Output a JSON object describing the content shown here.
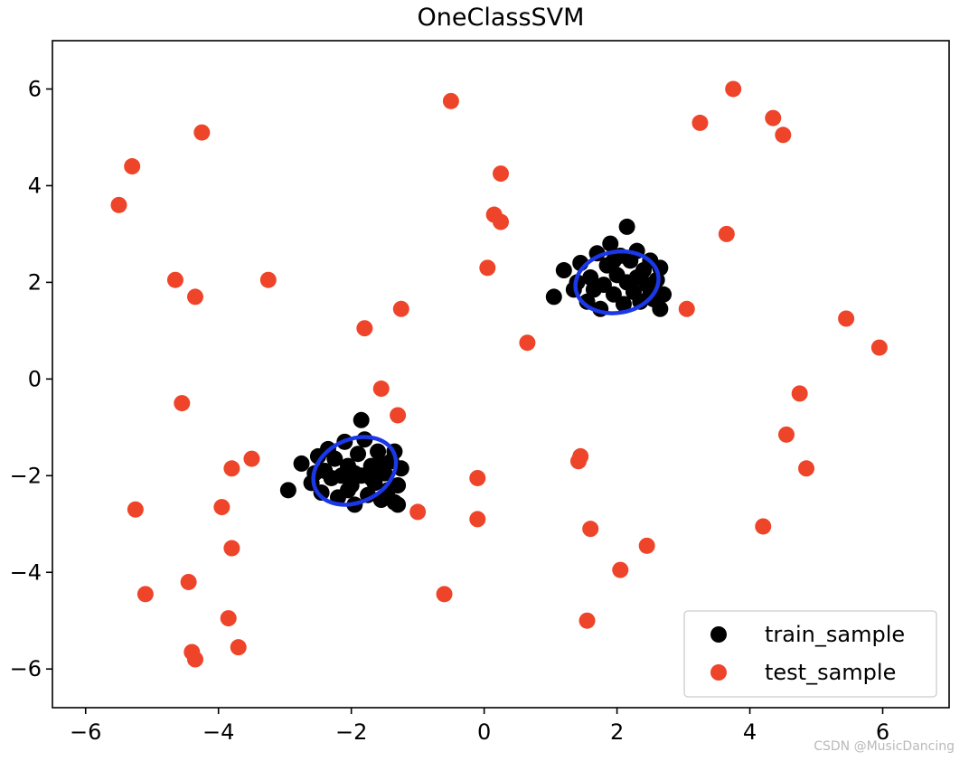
{
  "chart_data": {
    "type": "scatter",
    "title": "OneClassSVM",
    "xlabel": "",
    "ylabel": "",
    "xlim": [
      -6.5,
      7
    ],
    "ylim": [
      -6.8,
      7
    ],
    "xticks": [
      -6,
      -4,
      -2,
      0,
      2,
      4,
      6
    ],
    "xtick_labels": [
      "−6",
      "−4",
      "−2",
      "0",
      "2",
      "4",
      "6"
    ],
    "yticks": [
      -6,
      -4,
      -2,
      0,
      2,
      4,
      6
    ],
    "ytick_labels": [
      "−6",
      "−4",
      "−2",
      "0",
      "2",
      "4",
      "6"
    ],
    "grid": false,
    "legend_position": "bottom-right",
    "series": [
      {
        "name": "train_sample",
        "color": "#000000",
        "points": [
          [
            -1.85,
            -0.85
          ],
          [
            -2.95,
            -2.3
          ],
          [
            -2.75,
            -1.75
          ],
          [
            -2.6,
            -2.15
          ],
          [
            -2.5,
            -1.6
          ],
          [
            -2.45,
            -2.35
          ],
          [
            -2.35,
            -1.45
          ],
          [
            -2.3,
            -2.05
          ],
          [
            -2.25,
            -1.65
          ],
          [
            -2.2,
            -2.45
          ],
          [
            -2.1,
            -1.3
          ],
          [
            -2.05,
            -1.8
          ],
          [
            -2.0,
            -2.2
          ],
          [
            -1.95,
            -2.6
          ],
          [
            -1.9,
            -1.55
          ],
          [
            -1.85,
            -2.0
          ],
          [
            -1.8,
            -1.25
          ],
          [
            -1.75,
            -2.4
          ],
          [
            -1.7,
            -1.8
          ],
          [
            -1.65,
            -2.15
          ],
          [
            -1.6,
            -1.5
          ],
          [
            -1.55,
            -2.5
          ],
          [
            -1.5,
            -1.95
          ],
          [
            -1.45,
            -2.3
          ],
          [
            -1.4,
            -1.7
          ],
          [
            -1.35,
            -2.55
          ],
          [
            -1.3,
            -2.2
          ],
          [
            -1.25,
            -1.85
          ],
          [
            -1.35,
            -1.5
          ],
          [
            -2.15,
            -2.0
          ],
          [
            -1.95,
            -1.95
          ],
          [
            -2.05,
            -2.3
          ],
          [
            -1.7,
            -2.05
          ],
          [
            -1.55,
            -1.75
          ],
          [
            -2.4,
            -1.9
          ],
          [
            -1.3,
            -2.6
          ],
          [
            -2.55,
            -1.95
          ],
          [
            2.15,
            3.15
          ],
          [
            1.05,
            1.7
          ],
          [
            1.2,
            2.25
          ],
          [
            1.35,
            1.85
          ],
          [
            1.45,
            2.4
          ],
          [
            1.55,
            1.6
          ],
          [
            1.6,
            2.1
          ],
          [
            1.7,
            2.6
          ],
          [
            1.75,
            1.45
          ],
          [
            1.8,
            1.95
          ],
          [
            1.85,
            2.35
          ],
          [
            1.9,
            2.8
          ],
          [
            1.95,
            1.75
          ],
          [
            2.0,
            2.15
          ],
          [
            2.05,
            2.55
          ],
          [
            2.1,
            1.55
          ],
          [
            2.15,
            2.0
          ],
          [
            2.2,
            2.45
          ],
          [
            2.25,
            1.8
          ],
          [
            2.3,
            2.65
          ],
          [
            2.35,
            1.6
          ],
          [
            2.4,
            2.25
          ],
          [
            2.45,
            1.95
          ],
          [
            2.5,
            2.45
          ],
          [
            2.55,
            1.65
          ],
          [
            2.6,
            2.05
          ],
          [
            2.65,
            1.45
          ],
          [
            2.7,
            1.75
          ],
          [
            2.65,
            2.3
          ],
          [
            1.65,
            1.85
          ],
          [
            1.95,
            2.45
          ],
          [
            2.3,
            2.1
          ],
          [
            1.4,
            2.0
          ],
          [
            2.5,
            1.75
          ]
        ]
      },
      {
        "name": "test_sample",
        "color": "#ee4429",
        "points": [
          [
            -5.5,
            3.6
          ],
          [
            -5.3,
            4.4
          ],
          [
            -4.25,
            5.1
          ],
          [
            -4.65,
            2.05
          ],
          [
            -4.35,
            1.7
          ],
          [
            -3.25,
            2.05
          ],
          [
            -4.55,
            -0.5
          ],
          [
            -3.8,
            -1.85
          ],
          [
            -3.5,
            -1.65
          ],
          [
            -5.25,
            -2.7
          ],
          [
            -3.95,
            -2.65
          ],
          [
            -3.8,
            -3.5
          ],
          [
            -5.1,
            -4.45
          ],
          [
            -4.45,
            -4.2
          ],
          [
            -3.85,
            -4.95
          ],
          [
            -4.4,
            -5.65
          ],
          [
            -4.35,
            -5.8
          ],
          [
            -3.7,
            -5.55
          ],
          [
            -1.8,
            1.05
          ],
          [
            -1.25,
            1.45
          ],
          [
            -1.55,
            -0.2
          ],
          [
            -1.3,
            -0.75
          ],
          [
            -1.0,
            -2.75
          ],
          [
            -0.5,
            5.75
          ],
          [
            -0.6,
            -4.45
          ],
          [
            -0.1,
            -2.05
          ],
          [
            -0.1,
            -2.9
          ],
          [
            0.05,
            2.3
          ],
          [
            0.15,
            3.4
          ],
          [
            0.25,
            4.25
          ],
          [
            0.25,
            3.25
          ],
          [
            0.65,
            0.75
          ],
          [
            1.45,
            -1.6
          ],
          [
            1.42,
            -1.7
          ],
          [
            1.6,
            -3.1
          ],
          [
            1.55,
            -5.0
          ],
          [
            2.05,
            -3.95
          ],
          [
            2.45,
            -3.45
          ],
          [
            3.05,
            1.45
          ],
          [
            3.25,
            5.3
          ],
          [
            3.65,
            3.0
          ],
          [
            3.75,
            6.0
          ],
          [
            4.35,
            5.4
          ],
          [
            4.5,
            5.05
          ],
          [
            4.2,
            -3.05
          ],
          [
            4.55,
            -1.15
          ],
          [
            4.75,
            -0.3
          ],
          [
            4.85,
            -1.85
          ],
          [
            5.45,
            1.25
          ],
          [
            5.95,
            0.65
          ]
        ]
      }
    ],
    "decision_boundaries": [
      {
        "color": "#1a37e8",
        "center": [
          -1.95,
          -1.9
        ],
        "rx": 0.65,
        "ry": 0.65,
        "rotation_deg": 25
      },
      {
        "color": "#1a37e8",
        "center": [
          2.0,
          2.0
        ],
        "rx": 0.63,
        "ry": 0.63,
        "rotation_deg": 10
      }
    ]
  },
  "watermark": "CSDN @MusicDancing"
}
